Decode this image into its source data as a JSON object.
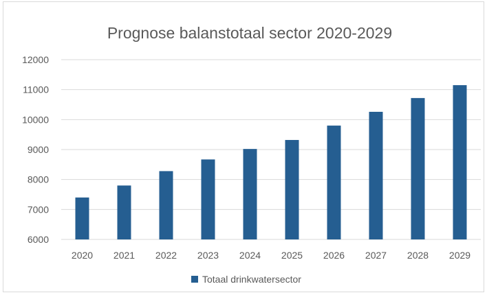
{
  "chart_data": {
    "type": "bar",
    "title": "Prognose balanstotaal sector 2020-2029",
    "categories": [
      "2020",
      "2021",
      "2022",
      "2023",
      "2024",
      "2025",
      "2026",
      "2027",
      "2028",
      "2029"
    ],
    "series": [
      {
        "name": "Totaal drinkwatersector",
        "values": [
          7400,
          7800,
          8280,
          8670,
          9020,
          9320,
          9800,
          10260,
          10720,
          11150
        ],
        "color": "#255e91"
      }
    ],
    "ylim": [
      6000,
      12000
    ],
    "yticks": [
      "6000",
      "7000",
      "8000",
      "9000",
      "10000",
      "11000",
      "12000"
    ],
    "grid": true,
    "legend_position": "bottom"
  }
}
